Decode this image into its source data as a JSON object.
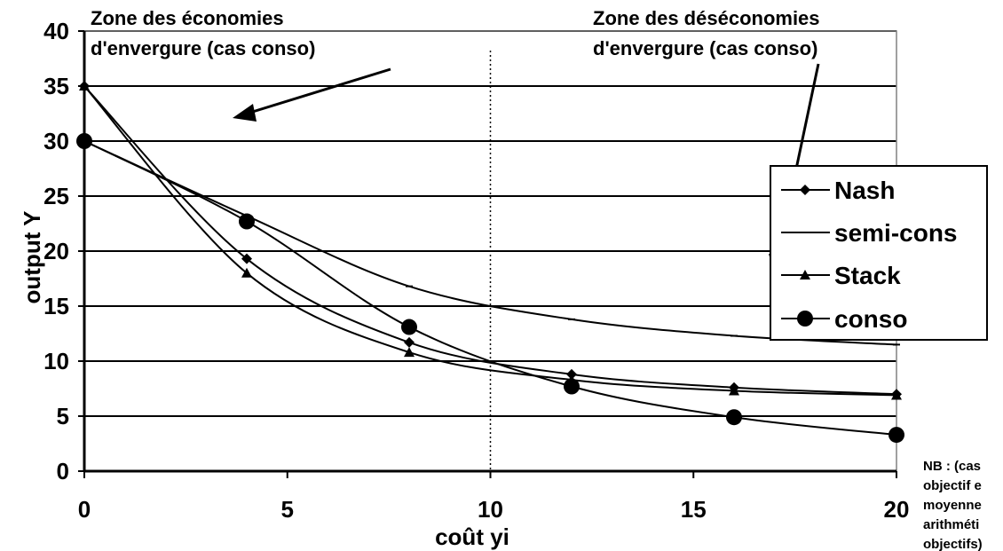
{
  "chart_data": {
    "type": "line",
    "xlabel": "coût yi",
    "ylabel": "output Y",
    "xlim": [
      0,
      20
    ],
    "ylim": [
      0,
      40
    ],
    "x_ticks": [
      0,
      5,
      10,
      15,
      20
    ],
    "y_ticks": [
      0,
      5,
      10,
      15,
      20,
      25,
      30,
      35,
      40
    ],
    "grid": "horizontal",
    "legend_position": "right",
    "x": [
      0,
      4,
      8,
      12,
      16,
      20
    ],
    "series": [
      {
        "name": "Nash",
        "marker": "diamond",
        "values": [
          35,
          19.3,
          11.7,
          8.8,
          7.6,
          7.0
        ]
      },
      {
        "name": "semi-cons",
        "marker": "dash",
        "values": [
          30,
          23.2,
          16.8,
          13.8,
          12.3,
          11.5
        ]
      },
      {
        "name": "Stack",
        "marker": "triangle",
        "values": [
          35,
          18.0,
          10.8,
          8.3,
          7.3,
          6.9
        ]
      },
      {
        "name": "conso",
        "marker": "circle",
        "values": [
          30,
          22.7,
          13.1,
          7.7,
          4.9,
          3.3
        ]
      }
    ],
    "divider_x": 10,
    "annotations": {
      "left_zone": [
        "Zone des économies",
        "d'envergure (cas conso)"
      ],
      "right_zone": [
        "Zone des déséconomies",
        "d'envergure (cas conso)"
      ],
      "note": [
        "NB : (cas",
        "objectif e",
        "moyenne",
        "arithméti",
        "objectifs)"
      ]
    },
    "colors": {
      "line": "#000000",
      "grid": "#000000",
      "background": "#ffffff"
    }
  }
}
